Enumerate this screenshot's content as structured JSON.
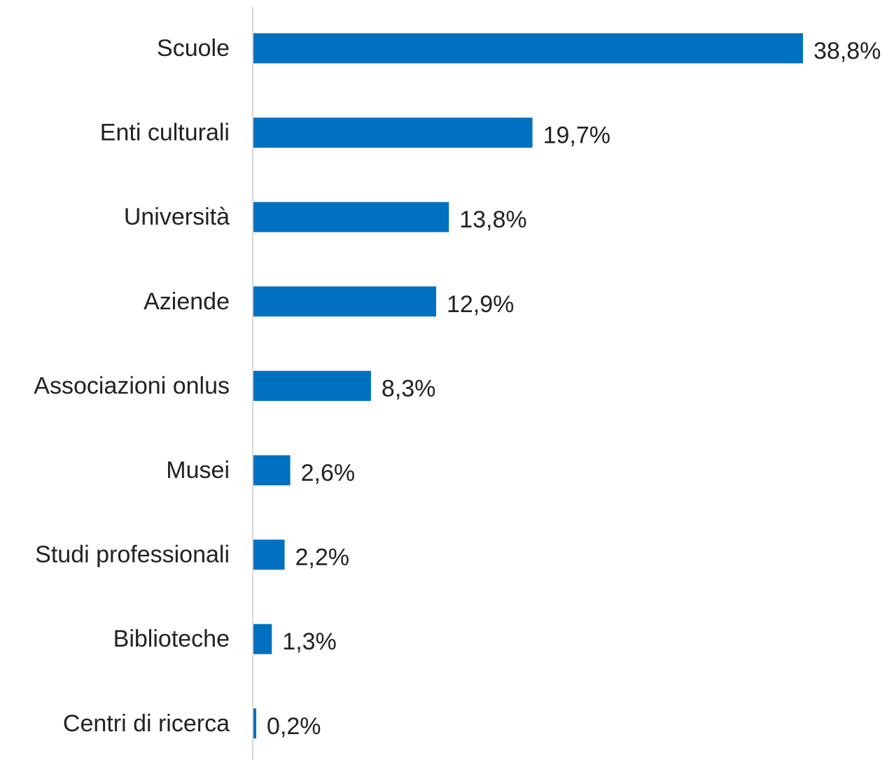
{
  "chart_data": {
    "type": "bar",
    "orientation": "horizontal",
    "title": "",
    "xlabel": "",
    "ylabel": "",
    "categories": [
      "Scuole",
      "Enti culturali",
      "Università",
      "Aziende",
      "Associazioni onlus",
      "Musei",
      "Studi professionali",
      "Biblioteche",
      "Centri di ricerca"
    ],
    "values": [
      38.8,
      19.7,
      13.8,
      12.9,
      8.3,
      2.6,
      2.2,
      1.3,
      0.2
    ],
    "value_labels": [
      "38,8%",
      "19,7%",
      "13,8%",
      "12,9%",
      "8,3%",
      "2,6%",
      "2,2%",
      "1,3%",
      "0,2%"
    ],
    "xlim": [
      0,
      40
    ],
    "unit": "%",
    "grid": false,
    "legend": "none",
    "bar_color": "#0070c0",
    "axis_color": "#d9d9d9",
    "text_color": "#222222"
  }
}
